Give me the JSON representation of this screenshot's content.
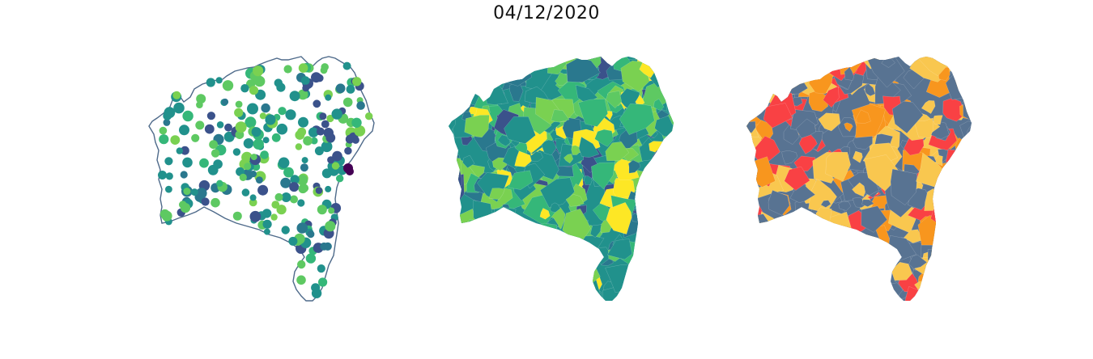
{
  "figure": {
    "title": "04/12/2020"
  },
  "panels": [
    {
      "kind": "proportional-points-map",
      "colormap": "viridis"
    },
    {
      "kind": "choropleth-map",
      "colormap": "viridis"
    },
    {
      "kind": "categorical-choropleth-map",
      "palette": [
        "#587392",
        "#f94144",
        "#f9c74f",
        "#f8961e"
      ]
    }
  ],
  "colors": {
    "outline": "#4e6a8a",
    "viridis_dark": "#440154",
    "viridis_blue": "#3b528b",
    "viridis_teal": "#21918c",
    "viridis_green": "#5ec962",
    "viridis_yellow": "#fde725",
    "class_slate": "#587392",
    "class_red": "#f94144",
    "class_yellow": "#f9c74f",
    "class_orange": "#f8961e"
  }
}
